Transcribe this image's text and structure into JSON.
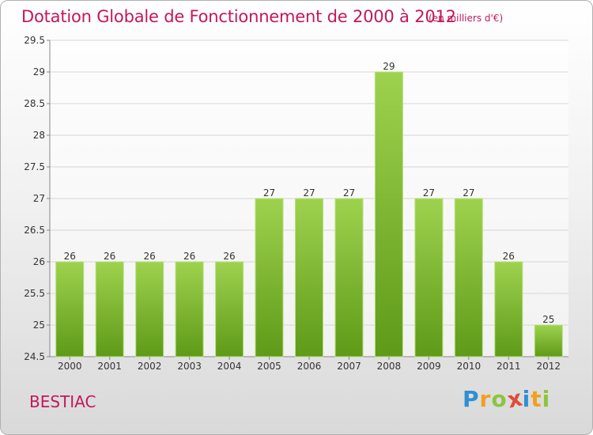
{
  "header": {
    "title": "Dotation Globale de Fonctionnement de 2000 à 2012",
    "unit": "(en milliers d'€)"
  },
  "footer": {
    "town": "BESTIAC",
    "logo_letters": [
      "P",
      "r",
      "o",
      "x",
      "i",
      "t",
      "i"
    ],
    "logo_colors": [
      "#2f8fd4",
      "#f0a020",
      "#8bc53f",
      "#e04b3a",
      "#2f8fd4",
      "#f0a020",
      "#8bc53f"
    ]
  },
  "chart_data": {
    "type": "bar",
    "title": "Dotation Globale de Fonctionnement de 2000 à 2012",
    "subtitle": "(en milliers d'€)",
    "categories": [
      "2000",
      "2001",
      "2002",
      "2003",
      "2004",
      "2005",
      "2006",
      "2007",
      "2008",
      "2009",
      "2010",
      "2011",
      "2012"
    ],
    "values": [
      26,
      26,
      26,
      26,
      26,
      27,
      27,
      27,
      29,
      27,
      27,
      26,
      25
    ],
    "data_labels": [
      "26",
      "26",
      "26",
      "26",
      "26",
      "27",
      "27",
      "27",
      "29",
      "27",
      "27",
      "26",
      "25"
    ],
    "ylim": [
      24.5,
      29.5
    ],
    "yticks": [
      "24.5",
      "25",
      "25.5",
      "26",
      "26.5",
      "27",
      "27.5",
      "28",
      "28.5",
      "29",
      "29.5"
    ],
    "grid": true,
    "bar_color_top": "#9ed24e",
    "bar_color_bottom": "#5e9a18"
  }
}
